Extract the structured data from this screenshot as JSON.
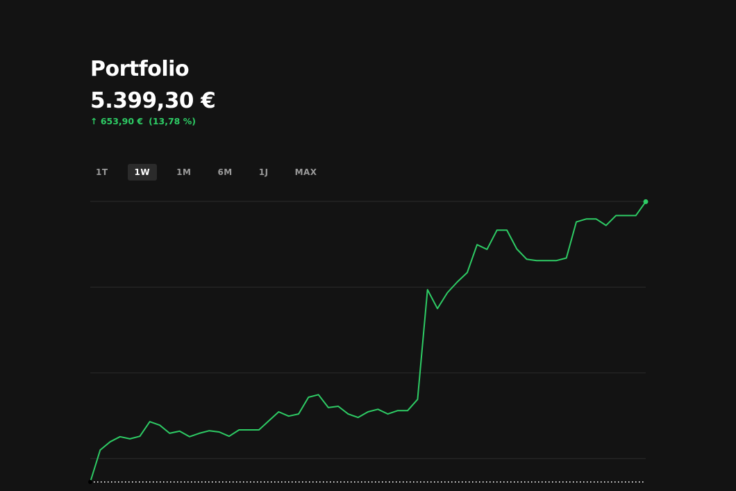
{
  "header": {
    "title": "Portfolio",
    "value": "5.399,30 €",
    "change": "↑ 653,90 €",
    "change_pct": "(13,78 %)"
  },
  "range_buttons": {
    "labels": [
      "1T",
      "1W",
      "1M",
      "6M",
      "1J",
      "MAX"
    ],
    "selected": 1
  },
  "chart_data": {
    "type": "line",
    "color": "#2ecc65",
    "grid": true,
    "values": [
      4745.4,
      4820,
      4839,
      4851,
      4846,
      4852,
      4886,
      4878,
      4859,
      4864,
      4851,
      4859,
      4865,
      4862,
      4852,
      4867,
      4867,
      4867,
      4888,
      4909,
      4899,
      4904,
      4943,
      4949,
      4919,
      4922,
      4904,
      4896,
      4909,
      4915,
      4904,
      4912,
      4912,
      4938,
      5194,
      5150,
      5187,
      5212,
      5234,
      5299,
      5288,
      5333,
      5333,
      5289,
      5265,
      5262,
      5262,
      5262,
      5268,
      5352,
      5359,
      5359,
      5344,
      5367,
      5367,
      5367,
      5399.3
    ],
    "ylim": [
      4745.4,
      5400
    ],
    "yticks": [
      4800,
      5000,
      5200,
      5400
    ]
  }
}
